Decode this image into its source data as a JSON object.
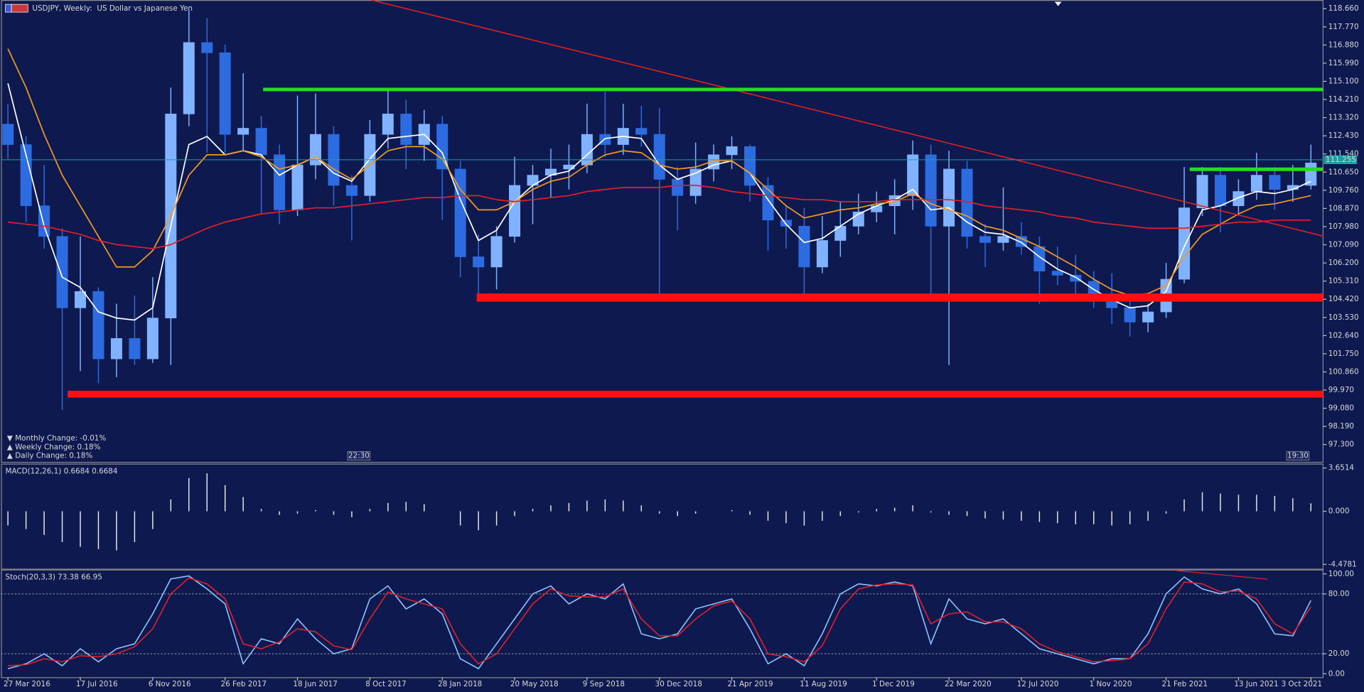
{
  "chart_data": [
    {
      "type": "candlestick",
      "title": "USDJPY, Weekly:  US Dollar vs Japanese Yen",
      "ylim": [
        96.449,
        119.085
      ],
      "yticks": [
        {
          "value": 118.66,
          "label": "118.660"
        },
        {
          "value": 117.77,
          "label": "117.770"
        },
        {
          "value": 116.88,
          "label": "116.880"
        },
        {
          "value": 115.99,
          "label": "115.990"
        },
        {
          "value": 115.1,
          "label": "115.100"
        },
        {
          "value": 114.21,
          "label": "114.210"
        },
        {
          "value": 113.32,
          "label": "113.320"
        },
        {
          "value": 112.43,
          "label": "112.430"
        },
        {
          "value": 111.54,
          "label": "111.540"
        },
        {
          "value": 110.65,
          "label": "110.650"
        },
        {
          "value": 109.76,
          "label": "109.760"
        },
        {
          "value": 108.87,
          "label": "108.870"
        },
        {
          "value": 107.98,
          "label": "107.980"
        },
        {
          "value": 107.09,
          "label": "107.090"
        },
        {
          "value": 106.2,
          "label": "106.200"
        },
        {
          "value": 105.31,
          "label": "105.310"
        },
        {
          "value": 104.42,
          "label": "104.420"
        },
        {
          "value": 103.53,
          "label": "103.530"
        },
        {
          "value": 102.64,
          "label": "102.640"
        },
        {
          "value": 101.75,
          "label": "101.750"
        },
        {
          "value": 100.86,
          "label": "100.860"
        },
        {
          "value": 99.97,
          "label": "99.970"
        },
        {
          "value": 99.08,
          "label": "99.080"
        },
        {
          "value": 98.19,
          "label": "98.190"
        },
        {
          "value": 97.3,
          "label": "97.300"
        }
      ],
      "up_color": "#80b2ff",
      "down_color": "#2d6be0",
      "candles": [
        [
          113.0,
          114.0,
          111.3,
          112.0
        ],
        [
          112.0,
          112.4,
          108.2,
          109.0
        ],
        [
          109.0,
          111.0,
          106.9,
          107.5
        ],
        [
          107.5,
          107.9,
          99.0,
          104.0
        ],
        [
          104.0,
          107.5,
          100.9,
          104.8
        ],
        [
          104.8,
          105.0,
          100.3,
          101.5
        ],
        [
          101.5,
          104.2,
          100.6,
          102.5
        ],
        [
          102.5,
          104.6,
          101.2,
          101.5
        ],
        [
          101.5,
          105.5,
          101.3,
          103.5
        ],
        [
          103.5,
          114.8,
          101.2,
          113.5
        ],
        [
          113.5,
          118.6,
          112.9,
          117.0
        ],
        [
          117.0,
          118.2,
          111.6,
          116.5
        ],
        [
          116.5,
          116.9,
          111.6,
          112.5
        ],
        [
          112.5,
          115.5,
          111.7,
          112.8
        ],
        [
          112.8,
          113.4,
          108.6,
          111.5
        ],
        [
          111.5,
          112.0,
          108.1,
          108.8
        ],
        [
          108.8,
          114.4,
          108.5,
          111.0
        ],
        [
          111.0,
          114.5,
          110.3,
          112.5
        ],
        [
          112.5,
          112.9,
          109.0,
          110.0
        ],
        [
          110.0,
          110.5,
          107.3,
          109.5
        ],
        [
          109.5,
          113.2,
          109.2,
          112.5
        ],
        [
          112.5,
          114.7,
          111.8,
          113.5
        ],
        [
          113.5,
          114.2,
          110.8,
          112.0
        ],
        [
          112.0,
          113.7,
          111.2,
          113.0
        ],
        [
          113.0,
          113.4,
          108.3,
          110.8
        ],
        [
          110.8,
          111.2,
          105.5,
          106.5
        ],
        [
          106.5,
          107.6,
          104.6,
          106.0
        ],
        [
          106.0,
          108.0,
          104.9,
          107.5
        ],
        [
          107.5,
          111.4,
          107.2,
          110.0
        ],
        [
          110.0,
          111.0,
          108.1,
          110.5
        ],
        [
          110.5,
          111.8,
          109.4,
          110.8
        ],
        [
          110.8,
          112.0,
          109.8,
          111.0
        ],
        [
          111.0,
          114.0,
          110.6,
          112.5
        ],
        [
          112.5,
          114.6,
          111.4,
          112.0
        ],
        [
          112.0,
          114.0,
          111.5,
          112.8
        ],
        [
          112.8,
          113.9,
          111.9,
          112.5
        ],
        [
          112.5,
          113.8,
          104.6,
          110.3
        ],
        [
          110.3,
          110.9,
          107.8,
          109.5
        ],
        [
          109.5,
          112.1,
          109.1,
          110.8
        ],
        [
          110.8,
          112.0,
          110.2,
          111.5
        ],
        [
          111.5,
          112.4,
          110.8,
          111.9
        ],
        [
          111.9,
          112.0,
          109.2,
          110.0
        ],
        [
          110.0,
          110.4,
          106.8,
          108.3
        ],
        [
          108.3,
          109.0,
          106.9,
          108.0
        ],
        [
          108.0,
          108.9,
          104.5,
          106.0
        ],
        [
          106.0,
          108.5,
          105.7,
          107.3
        ],
        [
          107.3,
          109.2,
          106.5,
          108.0
        ],
        [
          108.0,
          109.6,
          107.6,
          108.7
        ],
        [
          108.7,
          109.7,
          108.2,
          109.0
        ],
        [
          109.0,
          110.3,
          107.6,
          109.5
        ],
        [
          109.5,
          112.2,
          108.8,
          111.5
        ],
        [
          111.5,
          112.0,
          104.4,
          108.0
        ],
        [
          108.0,
          111.7,
          101.2,
          110.8
        ],
        [
          110.8,
          111.2,
          106.9,
          107.5
        ],
        [
          107.5,
          108.1,
          106.0,
          107.2
        ],
        [
          107.2,
          109.9,
          106.8,
          107.5
        ],
        [
          107.5,
          108.2,
          106.6,
          107.0
        ],
        [
          107.0,
          107.5,
          104.2,
          105.8
        ],
        [
          105.8,
          107.0,
          105.1,
          105.6
        ],
        [
          105.6,
          106.6,
          104.3,
          105.3
        ],
        [
          105.3,
          105.8,
          104.0,
          104.6
        ],
        [
          104.6,
          105.7,
          103.2,
          104.0
        ],
        [
          104.0,
          104.6,
          102.6,
          103.3
        ],
        [
          103.3,
          104.2,
          102.8,
          103.8
        ],
        [
          103.8,
          106.2,
          103.5,
          105.4
        ],
        [
          105.4,
          110.9,
          105.2,
          108.9
        ],
        [
          108.9,
          110.9,
          108.5,
          110.5
        ],
        [
          110.5,
          110.9,
          107.7,
          109.0
        ],
        [
          109.0,
          110.3,
          108.6,
          109.7
        ],
        [
          109.7,
          111.6,
          109.3,
          110.5
        ],
        [
          110.5,
          110.9,
          108.8,
          109.8
        ],
        [
          109.8,
          111.0,
          109.2,
          110.0
        ],
        [
          110.0,
          112.0,
          109.8,
          111.1
        ]
      ],
      "lines": [
        {
          "color": "#ffffff",
          "values": [
            115.0,
            111.5,
            108.0,
            105.5,
            105.0,
            103.8,
            103.5,
            103.4,
            104.0,
            108.0,
            112.0,
            112.4,
            111.5,
            111.7,
            111.5,
            110.5,
            111.0,
            111.4,
            110.6,
            110.2,
            111.3,
            112.3,
            112.4,
            112.5,
            111.6,
            109.3,
            107.3,
            107.8,
            109.2,
            110.0,
            110.5,
            110.7,
            111.5,
            112.3,
            112.4,
            112.3,
            111.0,
            110.3,
            110.6,
            111.0,
            111.2,
            110.6,
            109.3,
            108.1,
            107.2,
            107.4,
            108.0,
            108.6,
            109.0,
            109.3,
            109.8,
            108.8,
            108.9,
            108.2,
            107.7,
            107.6,
            107.2,
            106.5,
            105.9,
            105.5,
            104.9,
            104.4,
            104.0,
            104.1,
            104.8,
            107.0,
            108.8,
            109.0,
            109.4,
            109.7,
            109.6,
            109.8,
            110.2
          ]
        },
        {
          "color": "#f39a1e",
          "values": [
            116.7,
            114.8,
            112.5,
            110.5,
            109.0,
            107.5,
            106.0,
            106.0,
            106.8,
            108.5,
            110.5,
            111.5,
            111.5,
            111.7,
            111.4,
            110.8,
            111.0,
            111.4,
            110.8,
            110.3,
            111.0,
            111.7,
            111.9,
            111.9,
            111.3,
            109.8,
            108.8,
            108.8,
            109.2,
            109.8,
            110.2,
            110.4,
            111.0,
            111.5,
            111.7,
            111.6,
            111.0,
            110.8,
            110.9,
            111.2,
            111.2,
            110.6,
            109.8,
            109.0,
            108.4,
            108.6,
            108.8,
            108.9,
            109.1,
            109.2,
            109.6,
            109.1,
            108.8,
            108.5,
            108.0,
            107.8,
            107.4,
            107.0,
            106.5,
            106.0,
            105.4,
            104.9,
            104.6,
            104.7,
            105.1,
            106.5,
            107.6,
            108.1,
            108.6,
            109.0,
            109.1,
            109.3,
            109.5
          ]
        },
        {
          "color": "#e0202a",
          "values": [
            108.2,
            108.1,
            108.0,
            107.8,
            107.6,
            107.3,
            107.1,
            107.0,
            106.9,
            107.1,
            107.5,
            107.9,
            108.2,
            108.4,
            108.6,
            108.7,
            108.8,
            108.9,
            108.9,
            109.0,
            109.1,
            109.2,
            109.3,
            109.4,
            109.4,
            109.5,
            109.5,
            109.3,
            109.2,
            109.3,
            109.4,
            109.5,
            109.7,
            109.8,
            109.9,
            109.9,
            109.9,
            110.0,
            110.0,
            109.9,
            109.7,
            109.6,
            109.5,
            109.4,
            109.3,
            109.3,
            109.2,
            109.2,
            109.2,
            109.3,
            109.3,
            109.3,
            109.3,
            109.2,
            109.0,
            108.9,
            108.8,
            108.7,
            108.5,
            108.4,
            108.2,
            108.1,
            108.0,
            107.9,
            107.9,
            107.9,
            108.0,
            108.1,
            108.2,
            108.2,
            108.3,
            108.3,
            108.3
          ]
        }
      ],
      "hlines": [
        {
          "value": 114.7,
          "start": 14.1,
          "color": "#22dd22"
        },
        {
          "value": 110.79,
          "start": 65.3,
          "color": "#22dd22"
        }
      ],
      "zones": [
        {
          "from": 104.3,
          "to": 104.7,
          "start": 25.9,
          "color": "#ff1010"
        },
        {
          "from": 99.6,
          "to": 99.94,
          "start": 3.3,
          "color": "#ff1010"
        }
      ],
      "trendline": {
        "x": [
          20.1,
          72.7
        ],
        "y": [
          119.08,
          107.51
        ],
        "color": "#e02020"
      },
      "current_price": 111.255,
      "current_color": "#1aa0a0",
      "time_labels": [
        "22:30",
        "19:30"
      ],
      "stats": [
        {
          "text": "▼ Monthly Change: -0.01%",
          "color": "#e0202a"
        },
        {
          "text": "▲ Weekly Change: 0.18%",
          "color": "#1faa3c"
        },
        {
          "text": "▲ Daily Change: 0.18%",
          "color": "#1faa3c"
        }
      ]
    },
    {
      "type": "bar",
      "title": "MACD(12,26,1) 0.6684 0.6684",
      "color": "#e8e8e8",
      "ylim": [
        -4.846,
        3.945
      ],
      "yticks": [
        3.6514,
        {
          "value": 0,
          "label": "0.000"
        },
        -4.4781
      ],
      "values": [
        -1.2,
        -1.5,
        -2.0,
        -2.6,
        -3.0,
        -3.2,
        -3.3,
        -2.6,
        -1.5,
        1.0,
        2.8,
        3.2,
        2.2,
        1.2,
        0.2,
        -0.3,
        -0.2,
        0.1,
        -0.3,
        -0.5,
        0.2,
        0.7,
        0.8,
        0.6,
        0.0,
        -1.2,
        -1.6,
        -1.2,
        -0.4,
        0.2,
        0.5,
        0.7,
        0.9,
        1.0,
        0.9,
        0.5,
        -0.2,
        -0.4,
        -0.2,
        0.0,
        0.1,
        -0.3,
        -0.8,
        -1.0,
        -1.2,
        -0.8,
        -0.4,
        -0.1,
        0.2,
        0.3,
        0.5,
        -0.1,
        -0.3,
        -0.4,
        -0.6,
        -0.7,
        -0.8,
        -0.9,
        -1.0,
        -1.1,
        -1.1,
        -1.2,
        -1.1,
        -0.8,
        -0.2,
        1.0,
        1.6,
        1.5,
        1.4,
        1.4,
        1.3,
        1.1,
        0.67
      ]
    },
    {
      "type": "line",
      "title": "Stoch(20,3,3) 73.38 66.95",
      "ylim": [
        -3.5,
        103.5
      ],
      "yticks": [
        {
          "value": 100,
          "label": "100.00"
        },
        {
          "value": 80,
          "label": "80.00"
        },
        {
          "value": 20,
          "label": "20.00"
        },
        {
          "value": 0,
          "label": "0.00"
        }
      ],
      "levels": [
        80,
        20
      ],
      "categories": [
        "27 Mar 2016",
        null,
        null,
        null,
        "17 Jul 2016",
        null,
        null,
        null,
        "6 Nov 2016",
        null,
        null,
        null,
        "26 Feb 2017",
        null,
        null,
        null,
        "18 Jun 2017",
        null,
        null,
        null,
        "8 Oct 2017",
        null,
        null,
        null,
        "28 Jan 2018",
        null,
        null,
        null,
        "20 May 2018",
        null,
        null,
        null,
        "9 Sep 2018",
        null,
        null,
        null,
        "30 Dec 2018",
        null,
        null,
        null,
        "21 Apr 2019",
        null,
        null,
        null,
        "11 Aug 2019",
        null,
        null,
        null,
        "1 Dec 2019",
        null,
        null,
        null,
        "22 Mar 2020",
        null,
        null,
        null,
        "12 Jul 2020",
        null,
        null,
        null,
        "1 Nov 2020",
        null,
        null,
        null,
        "21 Feb 2021",
        null,
        null,
        null,
        "13 Jun 2021",
        null,
        null,
        null,
        "3 Oct 2021"
      ],
      "series": [
        {
          "color": "#8cc4ff",
          "values": [
            5,
            10,
            20,
            8,
            25,
            12,
            25,
            30,
            60,
            95,
            98,
            85,
            70,
            10,
            35,
            30,
            55,
            35,
            20,
            25,
            75,
            88,
            65,
            75,
            60,
            15,
            5,
            30,
            55,
            80,
            88,
            70,
            80,
            75,
            90,
            40,
            35,
            40,
            65,
            70,
            75,
            45,
            10,
            20,
            8,
            40,
            80,
            90,
            88,
            92,
            88,
            30,
            75,
            55,
            50,
            55,
            40,
            25,
            20,
            15,
            10,
            15,
            15,
            40,
            80,
            97,
            85,
            80,
            85,
            70,
            40,
            38,
            73.38
          ]
        },
        {
          "color": "#e0202a",
          "values": [
            8,
            9,
            15,
            12,
            18,
            17,
            20,
            27,
            45,
            80,
            96,
            90,
            75,
            30,
            25,
            32,
            45,
            42,
            28,
            24,
            55,
            82,
            75,
            70,
            65,
            30,
            10,
            20,
            45,
            70,
            85,
            78,
            77,
            77,
            85,
            55,
            38,
            38,
            55,
            68,
            73,
            55,
            20,
            17,
            12,
            28,
            65,
            85,
            89,
            90,
            89,
            50,
            60,
            62,
            52,
            52,
            45,
            30,
            22,
            17,
            12,
            13,
            15,
            30,
            65,
            92,
            90,
            82,
            83,
            75,
            50,
            40,
            66.95
          ]
        }
      ],
      "trendline": {
        "x": [
          64.5,
          69.6
        ],
        "y": [
          103.5,
          94.7
        ],
        "color": "#e0202a"
      }
    }
  ]
}
